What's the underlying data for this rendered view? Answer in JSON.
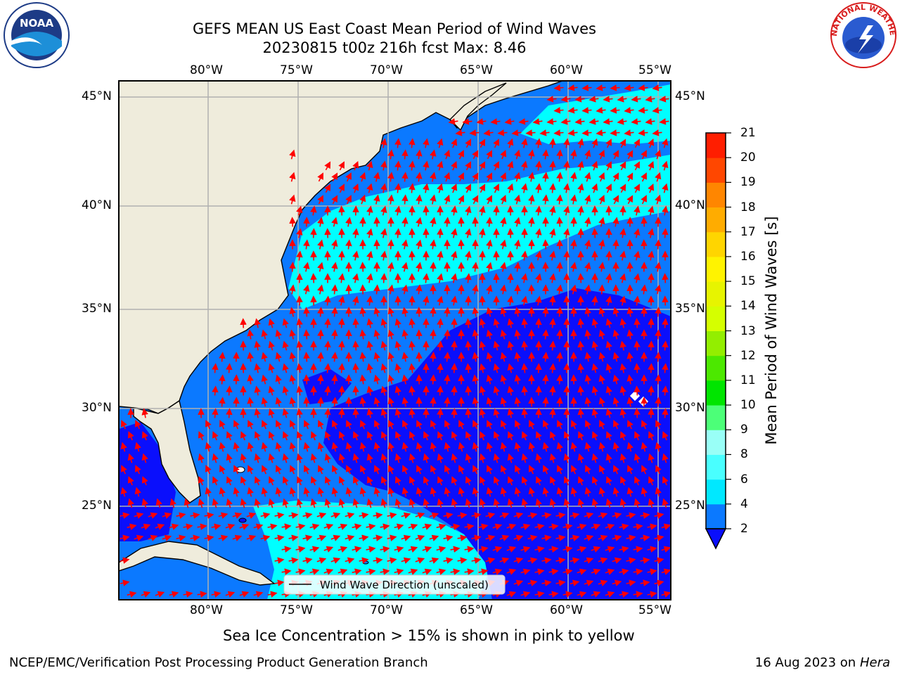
{
  "header": {
    "title_line1": "GEFS MEAN US East Coast Mean Period of Wind Waves",
    "title_line2": "20230815 t00z 216h fcst   Max: 8.46"
  },
  "logos": {
    "left_logo_text": "NOAA",
    "right_logo_text": "NATIONAL WEATHER SERVICE"
  },
  "map": {
    "lon_ticks": [
      "80°W",
      "75°W",
      "70°W",
      "65°W",
      "60°W",
      "55°W"
    ],
    "lat_ticks": [
      "45°N",
      "40°N",
      "35°N",
      "30°N",
      "25°N"
    ],
    "legend_label": "Wind Wave Direction (unscaled)",
    "arrow_color": "#ff0000",
    "land_color": "#efecdc"
  },
  "colorbar": {
    "label": "Mean Period of Wind Waves [s]",
    "tick_labels": [
      "2",
      "4",
      "6",
      "8",
      "9",
      "10",
      "11",
      "12",
      "13",
      "14",
      "15",
      "16",
      "17",
      "18",
      "19",
      "20",
      "21"
    ],
    "colors": [
      "#0b79ff",
      "#00e8ff",
      "#49ffff",
      "#99fff7",
      "#4cff78",
      "#00e500",
      "#4ce800",
      "#93ee00",
      "#d5ff00",
      "#e7f400",
      "#fff300",
      "#ffd500",
      "#ffac00",
      "#ff8600",
      "#ff4700",
      "#ff1e00"
    ],
    "extend_color": "#0a0ffc"
  },
  "caption": "Sea Ice Concentration > 15% is shown in pink to yellow",
  "footer": {
    "left": "NCEP/EMC/Verification Post Processing Product Generation Branch",
    "right_date": "16 Aug 2023 on",
    "right_host": "Hera"
  }
}
